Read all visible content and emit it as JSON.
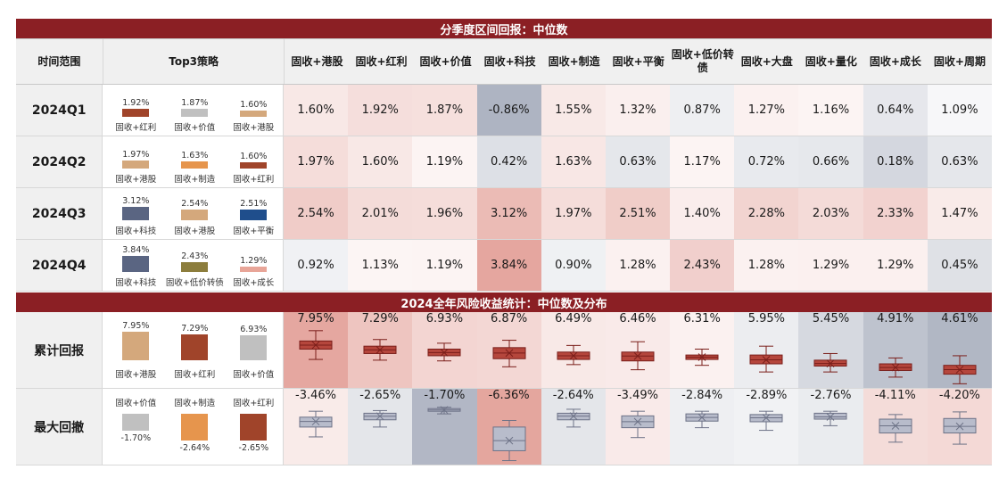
{
  "banner1": "分季度区间回报：中位数",
  "banner2": "2024全年风险收益统计：中位数及分布",
  "header": {
    "range": "时间范围",
    "top3": "Top3策略",
    "columns": [
      "固收+港股",
      "固收+红利",
      "固收+价值",
      "固收+科技",
      "固收+制造",
      "固收+平衡",
      "固收+低价转债",
      "固收+大盘",
      "固收+量化",
      "固收+成长",
      "固收+周期"
    ]
  },
  "colors": {
    "banner": "#8b1f24",
    "港股": "#d4a87c",
    "红利": "#a0442a",
    "价值": "#c0c0c0",
    "科技": "#5a6582",
    "制造": "#e6954d",
    "平衡": "#1f4e8c",
    "低价转债": "#8c7d3c",
    "成长": "#e8a598",
    "pos_heat": "#c94a3b",
    "neg_heat": "#5a6582"
  },
  "quarters": [
    {
      "label": "2024Q1",
      "top3": [
        {
          "name": "固收+红利",
          "value": "1.92%",
          "v": 1.92
        },
        {
          "name": "固收+价值",
          "value": "1.87%",
          "v": 1.87
        },
        {
          "name": "固收+港股",
          "value": "1.60%",
          "v": 1.6
        }
      ],
      "values": [
        "1.60%",
        "1.92%",
        "1.87%",
        "-0.86%",
        "1.55%",
        "1.32%",
        "0.87%",
        "1.27%",
        "1.16%",
        "0.64%",
        "1.09%"
      ]
    },
    {
      "label": "2024Q2",
      "top3": [
        {
          "name": "固收+港股",
          "value": "1.97%",
          "v": 1.97
        },
        {
          "name": "固收+制造",
          "value": "1.63%",
          "v": 1.63
        },
        {
          "name": "固收+红利",
          "value": "1.60%",
          "v": 1.6
        }
      ],
      "values": [
        "1.97%",
        "1.60%",
        "1.19%",
        "0.42%",
        "1.63%",
        "0.63%",
        "1.17%",
        "0.72%",
        "0.66%",
        "0.18%",
        "0.63%"
      ]
    },
    {
      "label": "2024Q3",
      "top3": [
        {
          "name": "固收+科技",
          "value": "3.12%",
          "v": 3.12
        },
        {
          "name": "固收+港股",
          "value": "2.54%",
          "v": 2.54
        },
        {
          "name": "固收+平衡",
          "value": "2.51%",
          "v": 2.51
        }
      ],
      "values": [
        "2.54%",
        "2.01%",
        "1.96%",
        "3.12%",
        "1.97%",
        "2.51%",
        "1.40%",
        "2.28%",
        "2.03%",
        "2.33%",
        "1.47%"
      ]
    },
    {
      "label": "2024Q4",
      "top3": [
        {
          "name": "固收+科技",
          "value": "3.84%",
          "v": 3.84
        },
        {
          "name": "固收+低价转债",
          "value": "2.43%",
          "v": 2.43
        },
        {
          "name": "固收+成长",
          "value": "1.29%",
          "v": 1.29
        }
      ],
      "values": [
        "0.92%",
        "1.13%",
        "1.19%",
        "3.84%",
        "0.90%",
        "1.28%",
        "2.43%",
        "1.28%",
        "1.29%",
        "1.29%",
        "0.45%"
      ]
    }
  ],
  "annual": [
    {
      "label": "累计回报",
      "top3": [
        {
          "name": "固收+港股",
          "value": "7.95%",
          "v": 7.95
        },
        {
          "name": "固收+红利",
          "value": "7.29%",
          "v": 7.29
        },
        {
          "name": "固收+价值",
          "value": "6.93%",
          "v": 6.93
        }
      ],
      "values": [
        "7.95%",
        "7.29%",
        "6.93%",
        "6.87%",
        "6.49%",
        "6.46%",
        "6.31%",
        "5.95%",
        "5.45%",
        "4.91%",
        "4.61%"
      ]
    },
    {
      "label": "最大回撤",
      "top3": [
        {
          "name": "固收+价值",
          "value": "-1.70%",
          "v": -1.7
        },
        {
          "name": "固收+制造",
          "value": "-2.64%",
          "v": -2.64
        },
        {
          "name": "固收+红利",
          "value": "-2.65%",
          "v": -2.65
        }
      ],
      "values": [
        "-3.46%",
        "-2.65%",
        "-1.70%",
        "-6.36%",
        "-2.64%",
        "-3.49%",
        "-2.84%",
        "-2.89%",
        "-2.76%",
        "-4.11%",
        "-4.20%"
      ]
    }
  ],
  "chart_data": {
    "type": "table",
    "columns": [
      "固收+港股",
      "固收+红利",
      "固收+价值",
      "固收+科技",
      "固收+制造",
      "固收+平衡",
      "固收+低价转债",
      "固收+大盘",
      "固收+量化",
      "固收+成长",
      "固收+周期"
    ],
    "quarterly_median": {
      "2024Q1": [
        1.6,
        1.92,
        1.87,
        -0.86,
        1.55,
        1.32,
        0.87,
        1.27,
        1.16,
        0.64,
        1.09
      ],
      "2024Q2": [
        1.97,
        1.6,
        1.19,
        0.42,
        1.63,
        0.63,
        1.17,
        0.72,
        0.66,
        0.18,
        0.63
      ],
      "2024Q3": [
        2.54,
        2.01,
        1.96,
        3.12,
        1.97,
        2.51,
        1.4,
        2.28,
        2.03,
        2.33,
        1.47
      ],
      "2024Q4": [
        0.92,
        1.13,
        1.19,
        3.84,
        0.9,
        1.28,
        2.43,
        1.28,
        1.29,
        1.29,
        0.45
      ]
    },
    "annual_return_median": [
      7.95,
      7.29,
      6.93,
      6.87,
      6.49,
      6.46,
      6.31,
      5.95,
      5.45,
      4.91,
      4.61
    ],
    "max_drawdown_median": [
      -3.46,
      -2.65,
      -1.7,
      -6.36,
      -2.64,
      -3.49,
      -2.84,
      -2.89,
      -2.76,
      -4.11,
      -4.2
    ],
    "annual_return_box": [
      {
        "min": 6.0,
        "q1": 7.4,
        "median": 7.95,
        "q3": 8.5,
        "max": 9.9
      },
      {
        "min": 5.9,
        "q1": 6.8,
        "median": 7.29,
        "q3": 7.8,
        "max": 8.7
      },
      {
        "min": 5.8,
        "q1": 6.5,
        "median": 6.93,
        "q3": 7.4,
        "max": 8.2
      },
      {
        "min": 5.0,
        "q1": 6.1,
        "median": 6.87,
        "q3": 7.6,
        "max": 8.6
      },
      {
        "min": 5.3,
        "q1": 6.0,
        "median": 6.49,
        "q3": 7.0,
        "max": 7.9
      },
      {
        "min": 4.6,
        "q1": 5.8,
        "median": 6.46,
        "q3": 7.0,
        "max": 8.4
      },
      {
        "min": 5.2,
        "q1": 6.0,
        "median": 6.31,
        "q3": 6.6,
        "max": 7.4
      },
      {
        "min": 4.3,
        "q1": 5.4,
        "median": 5.95,
        "q3": 6.6,
        "max": 7.8
      },
      {
        "min": 4.3,
        "q1": 5.1,
        "median": 5.45,
        "q3": 5.9,
        "max": 6.8
      },
      {
        "min": 3.6,
        "q1": 4.5,
        "median": 4.91,
        "q3": 5.4,
        "max": 6.2
      },
      {
        "min": 2.7,
        "q1": 4.0,
        "median": 4.61,
        "q3": 5.2,
        "max": 6.5
      }
    ],
    "max_drawdown_box": [
      {
        "min": -5.8,
        "q1": -4.3,
        "median": -3.46,
        "q3": -2.8,
        "max": -1.9
      },
      {
        "min": -4.3,
        "q1": -3.2,
        "median": -2.65,
        "q3": -2.2,
        "max": -1.8
      },
      {
        "min": -2.3,
        "q1": -1.9,
        "median": -1.7,
        "q3": -1.5,
        "max": -1.3
      },
      {
        "min": -9.4,
        "q1": -7.9,
        "median": -6.36,
        "q3": -4.3,
        "max": -3.3
      },
      {
        "min": -4.3,
        "q1": -3.2,
        "median": -2.64,
        "q3": -2.2,
        "max": -1.6
      },
      {
        "min": -5.9,
        "q1": -4.4,
        "median": -3.49,
        "q3": -2.6,
        "max": -1.9
      },
      {
        "min": -4.4,
        "q1": -3.4,
        "median": -2.84,
        "q3": -2.3,
        "max": -1.9
      },
      {
        "min": -4.8,
        "q1": -3.5,
        "median": -2.89,
        "q3": -2.4,
        "max": -1.9
      },
      {
        "min": -4.1,
        "q1": -3.1,
        "median": -2.76,
        "q3": -2.2,
        "max": -1.9
      },
      {
        "min": -6.6,
        "q1": -5.2,
        "median": -4.11,
        "q3": -3.1,
        "max": -2.4
      },
      {
        "min": -6.9,
        "q1": -5.2,
        "median": -4.2,
        "q3": -3.0,
        "max": -2.0
      }
    ]
  }
}
